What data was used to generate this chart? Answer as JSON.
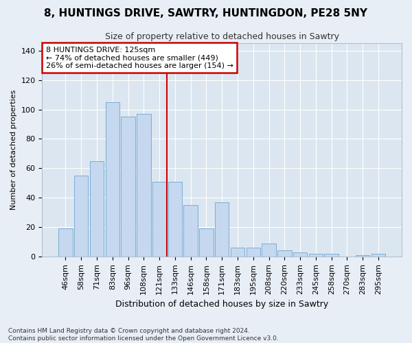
{
  "title": "8, HUNTINGS DRIVE, SAWTRY, HUNTINGDON, PE28 5NY",
  "subtitle": "Size of property relative to detached houses in Sawtry",
  "xlabel": "Distribution of detached houses by size in Sawtry",
  "ylabel": "Number of detached properties",
  "categories": [
    "46sqm",
    "58sqm",
    "71sqm",
    "83sqm",
    "96sqm",
    "108sqm",
    "121sqm",
    "133sqm",
    "146sqm",
    "158sqm",
    "171sqm",
    "183sqm",
    "195sqm",
    "208sqm",
    "220sqm",
    "233sqm",
    "245sqm",
    "258sqm",
    "270sqm",
    "283sqm",
    "295sqm"
  ],
  "values": [
    19,
    55,
    65,
    105,
    95,
    97,
    51,
    51,
    35,
    19,
    37,
    6,
    6,
    9,
    4,
    3,
    2,
    2,
    0,
    1,
    2
  ],
  "bar_color": "#c5d8ef",
  "bar_edge_color": "#7aadd4",
  "highlight_line_index": 6.5,
  "highlight_line_color": "#cc0000",
  "annotation_box_text": "8 HUNTINGS DRIVE: 125sqm\n← 74% of detached houses are smaller (449)\n26% of semi-detached houses are larger (154) →",
  "annotation_box_edge_color": "#cc0000",
  "annotation_box_facecolor": "white",
  "footnote": "Contains HM Land Registry data © Crown copyright and database right 2024.\nContains public sector information licensed under the Open Government Licence v3.0.",
  "ylim": [
    0,
    145
  ],
  "yticks": [
    0,
    20,
    40,
    60,
    80,
    100,
    120,
    140
  ],
  "background_color": "#e8eef5",
  "plot_background_color": "#dce6f0",
  "title_fontsize": 11,
  "subtitle_fontsize": 9,
  "ylabel_fontsize": 8,
  "xlabel_fontsize": 9,
  "tick_fontsize": 8,
  "footnote_fontsize": 6.5
}
